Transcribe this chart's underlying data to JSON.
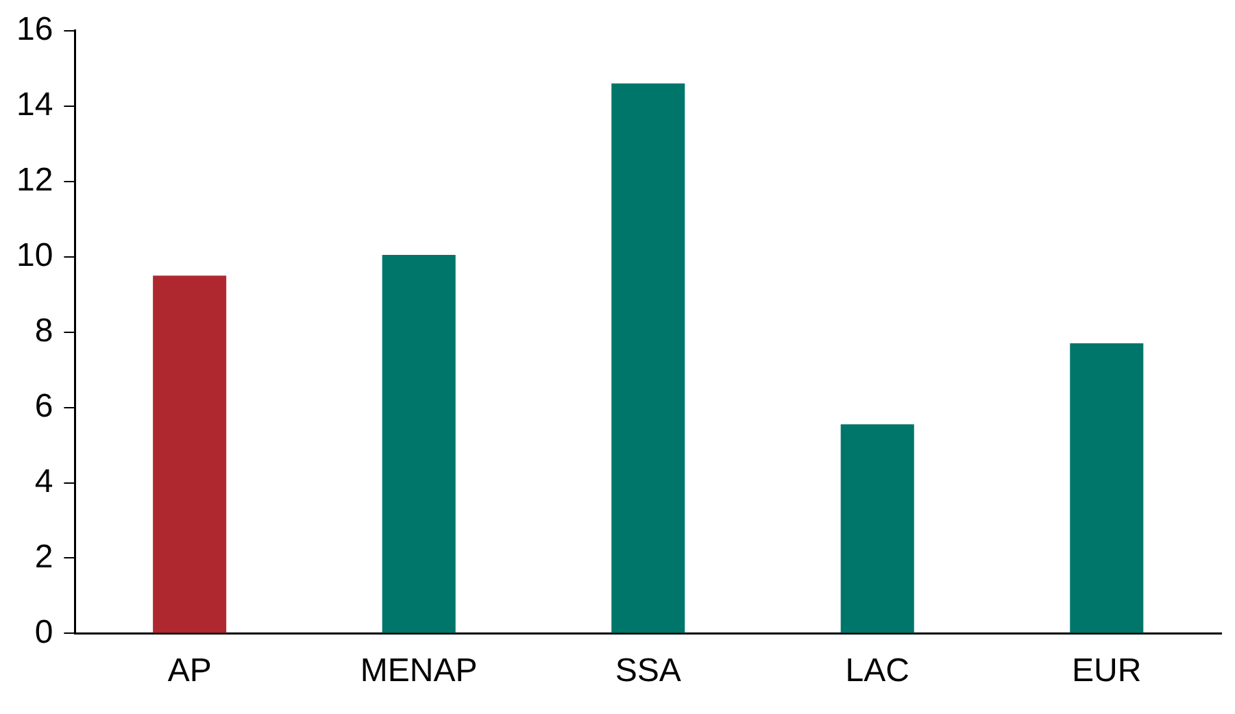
{
  "chart_data": {
    "type": "bar",
    "categories": [
      "AP",
      "MENAP",
      "SSA",
      "LAC",
      "EUR"
    ],
    "values": [
      9.5,
      10.05,
      14.6,
      5.55,
      7.7
    ],
    "colors": [
      "#b0282f",
      "#00766a",
      "#00766a",
      "#00766a",
      "#00766a"
    ],
    "ylim": [
      0,
      16
    ],
    "yticks": [
      0,
      2,
      4,
      6,
      8,
      10,
      12,
      14,
      16
    ],
    "grid": false,
    "legend": false
  }
}
